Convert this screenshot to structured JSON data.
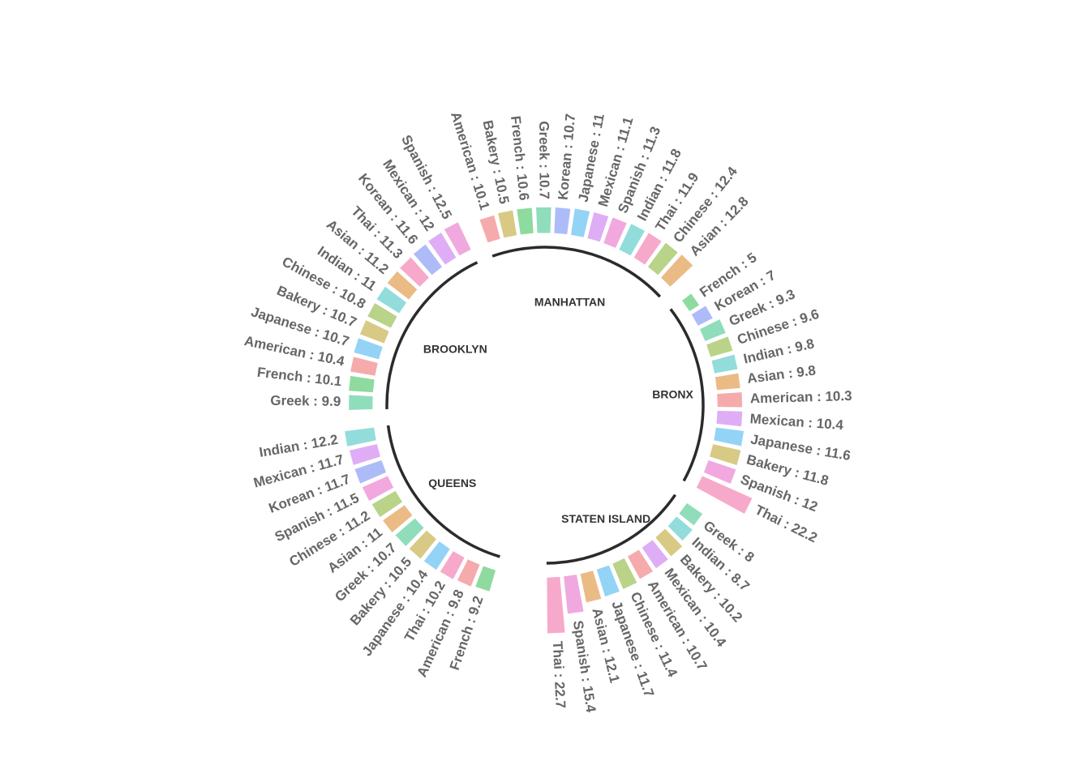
{
  "chart_data": {
    "type": "circular-barplot",
    "title": "",
    "colors": {
      "American": "#f4a6a6",
      "Bakery": "#d6c77e",
      "French": "#88d89a",
      "Greek": "#8adbb8",
      "Korean": "#a9b8f8",
      "Japanese": "#8dd1f5",
      "Mexican": "#dda9f5",
      "Spanish": "#f0a3dd",
      "Indian": "#8ddada",
      "Thai": "#f7a4c8",
      "Chinese": "#b5d183",
      "Asian": "#eab77e"
    },
    "groups": [
      {
        "name": "MANHATTAN",
        "bars": [
          {
            "cuisine": "American",
            "value": 10.1,
            "label": "American : 10.1"
          },
          {
            "cuisine": "Bakery",
            "value": 10.5,
            "label": "Bakery : 10.5"
          },
          {
            "cuisine": "French",
            "value": 10.6,
            "label": "French : 10.6"
          },
          {
            "cuisine": "Greek",
            "value": 10.7,
            "label": "Greek : 10.7"
          },
          {
            "cuisine": "Korean",
            "value": 10.7,
            "label": "Korean : 10.7"
          },
          {
            "cuisine": "Japanese",
            "value": 11,
            "label": "Japanese : 11"
          },
          {
            "cuisine": "Mexican",
            "value": 11.1,
            "label": "Mexican : 11.1"
          },
          {
            "cuisine": "Spanish",
            "value": 11.3,
            "label": "Spanish : 11.3"
          },
          {
            "cuisine": "Indian",
            "value": 11.8,
            "label": "Indian : 11.8"
          },
          {
            "cuisine": "Thai",
            "value": 11.9,
            "label": "Thai : 11.9"
          },
          {
            "cuisine": "Chinese",
            "value": 12.4,
            "label": "Chinese : 12.4"
          },
          {
            "cuisine": "Asian",
            "value": 12.8,
            "label": "Asian : 12.8"
          }
        ]
      },
      {
        "name": "BRONX",
        "bars": [
          {
            "cuisine": "French",
            "value": 5,
            "label": "French : 5"
          },
          {
            "cuisine": "Korean",
            "value": 7,
            "label": "Korean : 7"
          },
          {
            "cuisine": "Greek",
            "value": 9.3,
            "label": "Greek : 9.3"
          },
          {
            "cuisine": "Chinese",
            "value": 9.6,
            "label": "Chinese : 9.6"
          },
          {
            "cuisine": "Indian",
            "value": 9.8,
            "label": "Indian : 9.8"
          },
          {
            "cuisine": "Asian",
            "value": 9.8,
            "label": "Asian : 9.8"
          },
          {
            "cuisine": "American",
            "value": 10.3,
            "label": "American : 10.3"
          },
          {
            "cuisine": "Mexican",
            "value": 10.4,
            "label": "Mexican : 10.4"
          },
          {
            "cuisine": "Japanese",
            "value": 11.6,
            "label": "Japanese : 11.6"
          },
          {
            "cuisine": "Bakery",
            "value": 11.8,
            "label": "Bakery : 11.8"
          },
          {
            "cuisine": "Spanish",
            "value": 12,
            "label": "Spanish : 12"
          },
          {
            "cuisine": "Thai",
            "value": 22.2,
            "label": "Thai : 22.2"
          }
        ]
      },
      {
        "name": "STATEN ISLAND",
        "bars": [
          {
            "cuisine": "Greek",
            "value": 8,
            "label": "Greek : 8"
          },
          {
            "cuisine": "Indian",
            "value": 8.7,
            "label": "Indian : 8.7"
          },
          {
            "cuisine": "Bakery",
            "value": 10.2,
            "label": "Bakery : 10.2"
          },
          {
            "cuisine": "Mexican",
            "value": 10.4,
            "label": "Mexican : 10.4"
          },
          {
            "cuisine": "American",
            "value": 10.7,
            "label": "American : 10.7"
          },
          {
            "cuisine": "Chinese",
            "value": 11.4,
            "label": "Chinese : 11.4"
          },
          {
            "cuisine": "Japanese",
            "value": 11.7,
            "label": "Japanese : 11.7"
          },
          {
            "cuisine": "Asian",
            "value": 12.1,
            "label": "Asian : 12.1"
          },
          {
            "cuisine": "Spanish",
            "value": 15.4,
            "label": "Spanish : 15.4"
          },
          {
            "cuisine": "Thai",
            "value": 22.7,
            "label": "Thai : 22.7"
          }
        ]
      },
      {
        "name": "QUEENS",
        "bars": [
          {
            "cuisine": "French",
            "value": 9.2,
            "label": "French : 9.2"
          },
          {
            "cuisine": "American",
            "value": 9.8,
            "label": "American : 9.8"
          },
          {
            "cuisine": "Thai",
            "value": 10.2,
            "label": "Thai : 10.2"
          },
          {
            "cuisine": "Japanese",
            "value": 10.4,
            "label": "Japanese : 10.4"
          },
          {
            "cuisine": "Bakery",
            "value": 10.5,
            "label": "Bakery : 10.5"
          },
          {
            "cuisine": "Greek",
            "value": 10.7,
            "label": "Greek : 10.7"
          },
          {
            "cuisine": "Asian",
            "value": 11,
            "label": "Asian : 11"
          },
          {
            "cuisine": "Chinese",
            "value": 11.2,
            "label": "Chinese : 11.2"
          },
          {
            "cuisine": "Spanish",
            "value": 11.5,
            "label": "Spanish : 11.5"
          },
          {
            "cuisine": "Korean",
            "value": 11.7,
            "label": "Korean : 11.7"
          },
          {
            "cuisine": "Mexican",
            "value": 11.7,
            "label": "Mexican : 11.7"
          },
          {
            "cuisine": "Indian",
            "value": 12.2,
            "label": "Indian : 12.2"
          }
        ]
      },
      {
        "name": "BROOKLYN",
        "bars": [
          {
            "cuisine": "Greek",
            "value": 9.9,
            "label": "Greek : 9.9"
          },
          {
            "cuisine": "French",
            "value": 10.1,
            "label": "French : 10.1"
          },
          {
            "cuisine": "American",
            "value": 10.4,
            "label": "American : 10.4"
          },
          {
            "cuisine": "Japanese",
            "value": 10.7,
            "label": "Japanese : 10.7"
          },
          {
            "cuisine": "Bakery",
            "value": 10.7,
            "label": "Bakery : 10.7"
          },
          {
            "cuisine": "Chinese",
            "value": 10.8,
            "label": "Chinese : 10.8"
          },
          {
            "cuisine": "Indian",
            "value": 11,
            "label": "Indian : 11"
          },
          {
            "cuisine": "Asian",
            "value": 11.2,
            "label": "Asian : 11.2"
          },
          {
            "cuisine": "Thai",
            "value": 11.3,
            "label": "Thai : 11.3"
          },
          {
            "cuisine": "Korean",
            "value": 11.6,
            "label": "Korean : 11.6"
          },
          {
            "cuisine": "Mexican",
            "value": 12,
            "label": "Mexican : 12"
          },
          {
            "cuisine": "Spanish",
            "value": 12.5,
            "label": "Spanish : 12.5"
          }
        ]
      }
    ]
  }
}
